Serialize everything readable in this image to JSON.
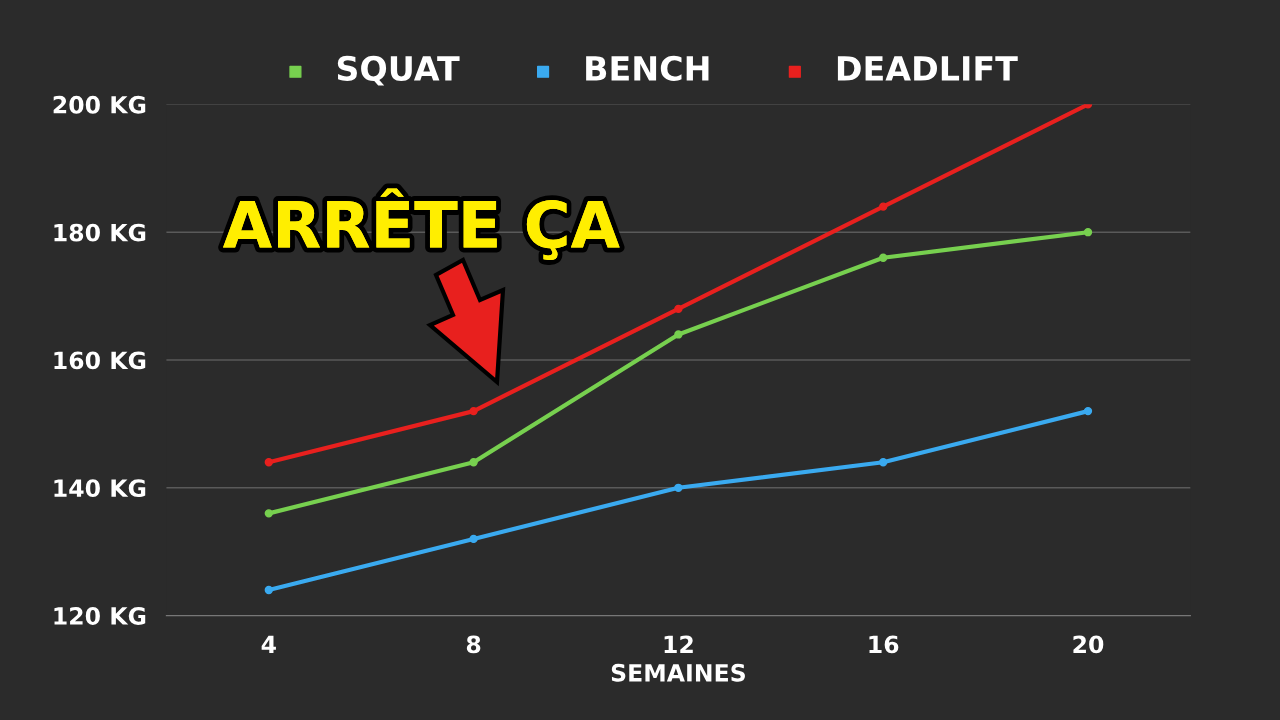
{
  "chart_data": {
    "type": "line",
    "xlabel": "SEMAINES",
    "categories": [
      "4",
      "8",
      "12",
      "16",
      "20"
    ],
    "series": [
      {
        "name": "SQUAT",
        "color": "#77d04f",
        "values": [
          136,
          144,
          164,
          176,
          180
        ]
      },
      {
        "name": "BENCH",
        "color": "#3aaaf0",
        "values": [
          124,
          132,
          140,
          144,
          152
        ]
      },
      {
        "name": "DEADLIFT",
        "color": "#e8201e",
        "values": [
          144,
          152,
          168,
          184,
          200
        ]
      }
    ],
    "ylim": [
      120,
      200
    ],
    "yticks": [
      {
        "value": 120,
        "label": "120 KG"
      },
      {
        "value": 140,
        "label": "140 KG"
      },
      {
        "value": 160,
        "label": "160 KG"
      },
      {
        "value": 180,
        "label": "180 KG"
      },
      {
        "value": 200,
        "label": "200 KG"
      }
    ],
    "annotations": [
      "ARRÊTE ÇA"
    ],
    "grid": "y",
    "legend": "top",
    "marker": "circle",
    "line_style": "solid"
  }
}
